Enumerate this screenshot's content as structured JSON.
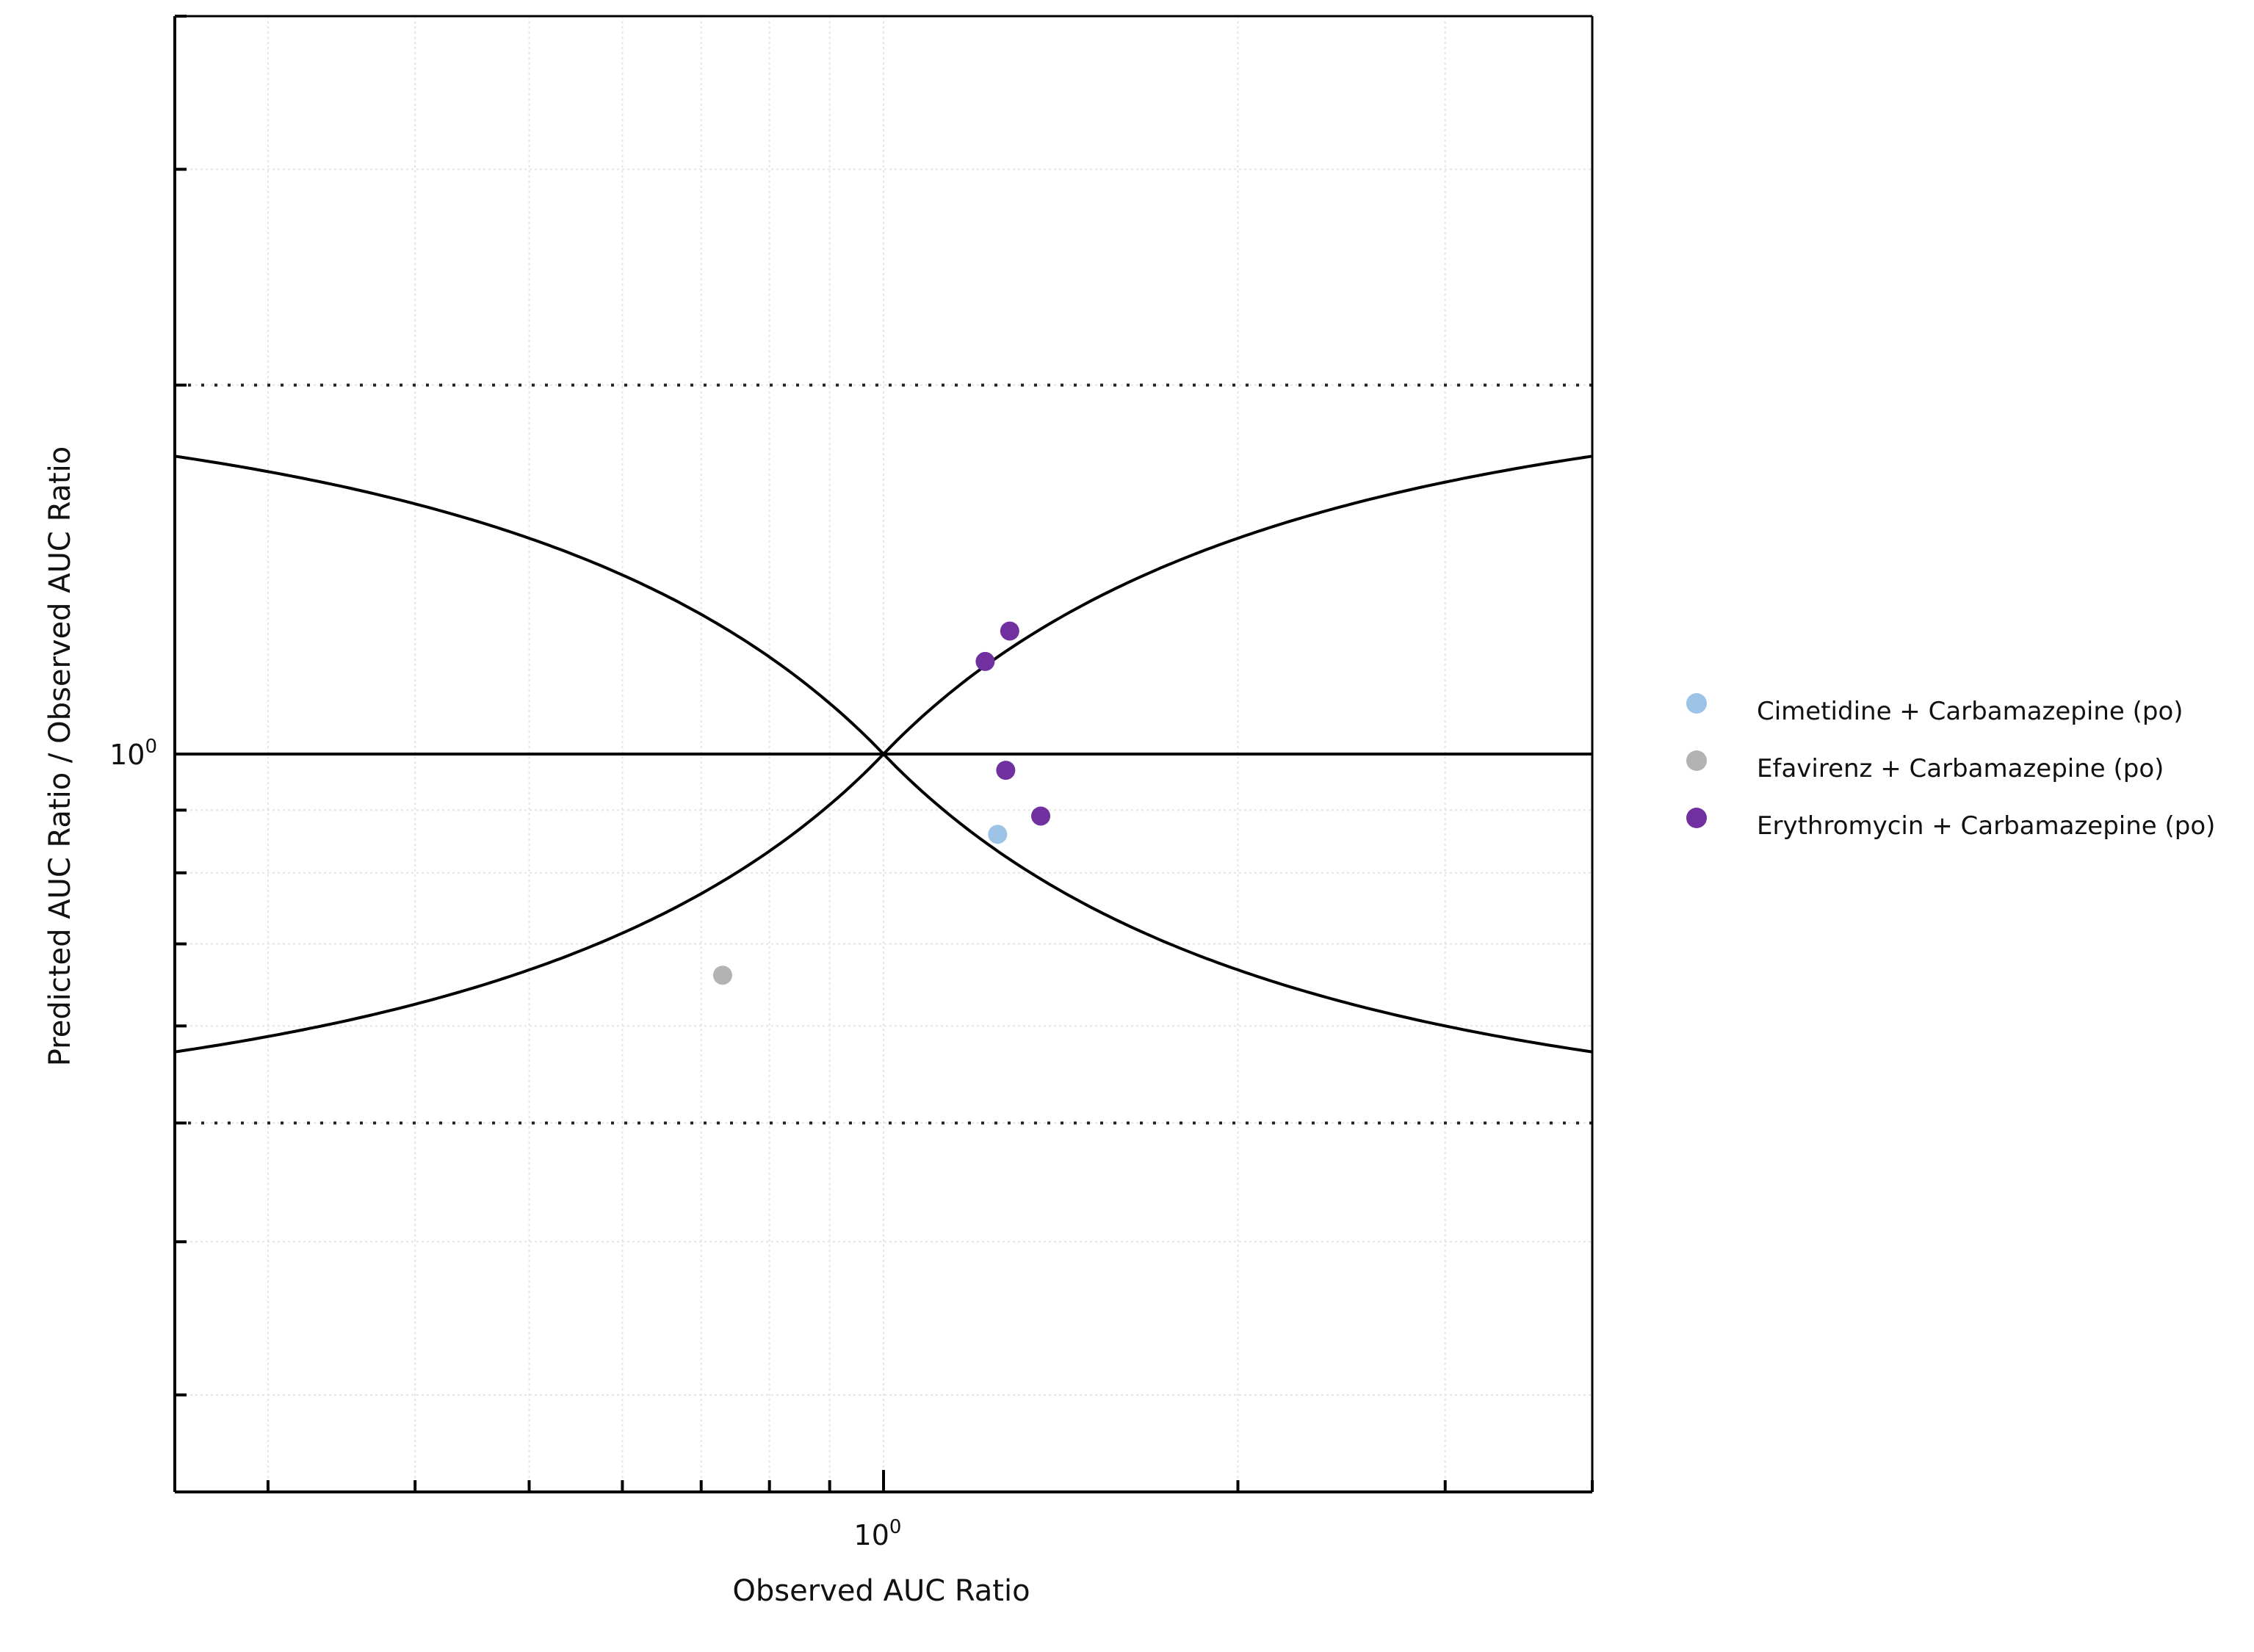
{
  "chart_data": {
    "type": "scatter",
    "xlabel": "Observed AUC Ratio",
    "ylabel": "Predicted AUC Ratio / Observed AUC Ratio",
    "x_scale": "log",
    "y_scale": "log",
    "xlim": [
      0.25,
      4.0
    ],
    "ylim": [
      0.25,
      4.0
    ],
    "x_tick_labels": [
      {
        "base": "10",
        "exp": "0"
      }
    ],
    "y_tick_labels": [
      {
        "base": "10",
        "exp": "0"
      }
    ],
    "reference_lines": {
      "unity": 1.0,
      "dotted_limits": [
        0.5,
        2.0
      ],
      "guest_limit_curves": true
    },
    "grid": true,
    "legend_position": "right",
    "series": [
      {
        "name": "Cimetidine + Carbamazepine (po)",
        "color": "#9dc3e6",
        "points": [
          {
            "x": 1.25,
            "y": 0.86
          }
        ]
      },
      {
        "name": "Efavirenz + Carbamazepine (po)",
        "color": "#b3b3b3",
        "points": [
          {
            "x": 0.73,
            "y": 0.66
          }
        ]
      },
      {
        "name": "Erythromycin + Carbamazepine (po)",
        "color": "#7030a0",
        "points": [
          {
            "x": 1.28,
            "y": 1.26
          },
          {
            "x": 1.22,
            "y": 1.19
          },
          {
            "x": 1.27,
            "y": 0.97
          },
          {
            "x": 1.36,
            "y": 0.89
          }
        ]
      }
    ]
  }
}
